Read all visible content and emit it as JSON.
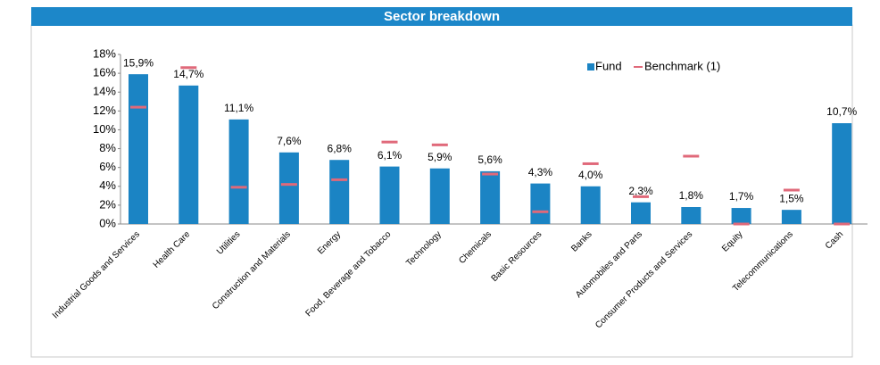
{
  "chart_data": {
    "type": "bar",
    "title": "Sector breakdown",
    "categories": [
      "Industrial Goods and Services",
      "Health Care",
      "Utilities",
      "Construction and Materials",
      "Energy",
      "Food, Beverage and Tobacco",
      "Technology",
      "Chemicals",
      "Basic Resources",
      "Banks",
      "Automobiles and Parts",
      "Consumer Products and Services",
      "Equity",
      "Telecommunications",
      "Cash"
    ],
    "series": [
      {
        "name": "Fund",
        "color": "#1b84c4",
        "values": [
          15.9,
          14.7,
          11.1,
          7.6,
          6.8,
          6.1,
          5.9,
          5.6,
          4.3,
          4.0,
          2.3,
          1.8,
          1.7,
          1.5,
          10.7
        ],
        "value_labels": [
          "15,9%",
          "14,7%",
          "11,1%",
          "7,6%",
          "6,8%",
          "6,1%",
          "5,9%",
          "5,6%",
          "4,3%",
          "4,0%",
          "2,3%",
          "1,8%",
          "1,7%",
          "1,5%",
          "10,7%"
        ]
      },
      {
        "name": "Benchmark (1)",
        "color": "#e0697a",
        "values": [
          12.4,
          16.6,
          3.9,
          4.2,
          4.7,
          8.7,
          8.4,
          5.3,
          1.3,
          6.4,
          2.9,
          7.2,
          0,
          3.6,
          0
        ]
      }
    ],
    "ylim": [
      0,
      18
    ],
    "yticks": [
      {
        "value": 0,
        "label": "0%"
      },
      {
        "value": 2,
        "label": "2%"
      },
      {
        "value": 4,
        "label": "4%"
      },
      {
        "value": 6,
        "label": "6%"
      },
      {
        "value": 8,
        "label": "8%"
      },
      {
        "value": 10,
        "label": "10%"
      },
      {
        "value": 12,
        "label": "12%"
      },
      {
        "value": 14,
        "label": "14%"
      },
      {
        "value": 16,
        "label": "16%"
      },
      {
        "value": 18,
        "label": "18%"
      }
    ],
    "legend": "top-right"
  }
}
